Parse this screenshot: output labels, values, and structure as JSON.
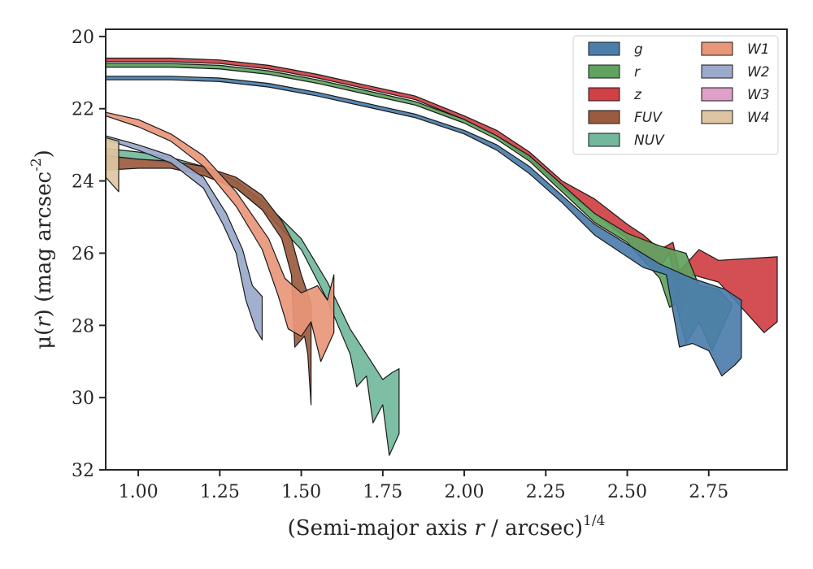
{
  "chart_data": {
    "type": "area",
    "xlabel": "(Semi-major axis r / arcsec)^(1/4)",
    "ylabel": "μ(r) (mag arcsec^-2)",
    "xlim": [
      0.9,
      2.99
    ],
    "ylim": [
      32,
      19.8
    ],
    "y_inverted": true,
    "grid": false,
    "legend_position": "top-right",
    "legend_columns": 2,
    "x_ticks": [
      "1.00",
      "1.25",
      "1.50",
      "1.75",
      "2.00",
      "2.25",
      "2.50",
      "2.75"
    ],
    "x_tick_values": [
      1.0,
      1.25,
      1.5,
      1.75,
      2.0,
      2.25,
      2.5,
      2.75
    ],
    "y_ticks": [
      "20",
      "22",
      "24",
      "26",
      "28",
      "30",
      "32"
    ],
    "y_tick_values": [
      20,
      22,
      24,
      26,
      28,
      30,
      32
    ],
    "series": [
      {
        "name": "g",
        "color": "#4c7eab",
        "upper": [
          [
            0.9,
            21.1
          ],
          [
            1.1,
            21.1
          ],
          [
            1.25,
            21.15
          ],
          [
            1.4,
            21.3
          ],
          [
            1.55,
            21.55
          ],
          [
            1.7,
            21.85
          ],
          [
            1.85,
            22.15
          ],
          [
            2.0,
            22.6
          ],
          [
            2.1,
            23.0
          ],
          [
            2.2,
            23.6
          ],
          [
            2.3,
            24.4
          ],
          [
            2.4,
            25.2
          ],
          [
            2.5,
            25.75
          ],
          [
            2.6,
            26.3
          ],
          [
            2.7,
            26.7
          ],
          [
            2.8,
            27.0
          ],
          [
            2.85,
            27.3
          ]
        ],
        "lower": [
          [
            0.9,
            21.2
          ],
          [
            1.1,
            21.2
          ],
          [
            1.25,
            21.25
          ],
          [
            1.4,
            21.4
          ],
          [
            1.55,
            21.65
          ],
          [
            1.7,
            21.95
          ],
          [
            1.85,
            22.25
          ],
          [
            2.0,
            22.7
          ],
          [
            2.1,
            23.15
          ],
          [
            2.2,
            23.8
          ],
          [
            2.3,
            24.6
          ],
          [
            2.4,
            25.5
          ],
          [
            2.5,
            26.1
          ],
          [
            2.55,
            26.4
          ],
          [
            2.62,
            26.6
          ],
          [
            2.66,
            28.6
          ],
          [
            2.7,
            28.5
          ],
          [
            2.75,
            28.7
          ],
          [
            2.79,
            29.4
          ],
          [
            2.83,
            29.1
          ],
          [
            2.85,
            28.9
          ]
        ]
      },
      {
        "name": "r",
        "color": "#5fa35f",
        "upper": [
          [
            0.9,
            20.75
          ],
          [
            1.1,
            20.75
          ],
          [
            1.25,
            20.8
          ],
          [
            1.4,
            20.95
          ],
          [
            1.55,
            21.2
          ],
          [
            1.7,
            21.5
          ],
          [
            1.85,
            21.8
          ],
          [
            2.0,
            22.3
          ],
          [
            2.1,
            22.75
          ],
          [
            2.2,
            23.3
          ],
          [
            2.3,
            24.1
          ],
          [
            2.4,
            24.9
          ],
          [
            2.5,
            25.45
          ],
          [
            2.6,
            25.8
          ],
          [
            2.68,
            26.0
          ],
          [
            2.72,
            26.9
          ],
          [
            2.78,
            27.0
          ],
          [
            2.82,
            27.4
          ]
        ],
        "lower": [
          [
            0.9,
            20.85
          ],
          [
            1.1,
            20.85
          ],
          [
            1.25,
            20.9
          ],
          [
            1.4,
            21.05
          ],
          [
            1.55,
            21.3
          ],
          [
            1.7,
            21.6
          ],
          [
            1.85,
            21.9
          ],
          [
            2.0,
            22.4
          ],
          [
            2.1,
            22.85
          ],
          [
            2.2,
            23.45
          ],
          [
            2.3,
            24.3
          ],
          [
            2.4,
            25.15
          ],
          [
            2.5,
            25.7
          ],
          [
            2.55,
            26.2
          ],
          [
            2.6,
            26.7
          ],
          [
            2.63,
            27.5
          ],
          [
            2.65,
            27.4
          ],
          [
            2.68,
            28.5
          ],
          [
            2.72,
            27.9
          ],
          [
            2.76,
            28.7
          ],
          [
            2.82,
            27.5
          ]
        ]
      },
      {
        "name": "z",
        "color": "#d04045",
        "upper": [
          [
            0.9,
            20.6
          ],
          [
            1.1,
            20.6
          ],
          [
            1.25,
            20.65
          ],
          [
            1.4,
            20.8
          ],
          [
            1.55,
            21.05
          ],
          [
            1.7,
            21.35
          ],
          [
            1.85,
            21.65
          ],
          [
            2.0,
            22.2
          ],
          [
            2.1,
            22.6
          ],
          [
            2.2,
            23.2
          ],
          [
            2.3,
            24.0
          ],
          [
            2.4,
            24.5
          ],
          [
            2.5,
            25.2
          ],
          [
            2.55,
            25.5
          ],
          [
            2.6,
            25.9
          ],
          [
            2.64,
            25.7
          ],
          [
            2.66,
            26.5
          ],
          [
            2.72,
            25.9
          ],
          [
            2.78,
            26.2
          ],
          [
            2.96,
            26.1
          ]
        ],
        "lower": [
          [
            0.9,
            20.7
          ],
          [
            1.1,
            20.7
          ],
          [
            1.25,
            20.75
          ],
          [
            1.4,
            20.9
          ],
          [
            1.55,
            21.15
          ],
          [
            1.7,
            21.45
          ],
          [
            1.85,
            21.75
          ],
          [
            2.0,
            22.3
          ],
          [
            2.1,
            22.75
          ],
          [
            2.2,
            23.4
          ],
          [
            2.3,
            24.2
          ],
          [
            2.4,
            24.9
          ],
          [
            2.5,
            25.6
          ],
          [
            2.55,
            26.2
          ],
          [
            2.6,
            26.4
          ],
          [
            2.63,
            26.0
          ],
          [
            2.66,
            27.8
          ],
          [
            2.7,
            26.6
          ],
          [
            2.78,
            26.8
          ],
          [
            2.92,
            28.2
          ],
          [
            2.96,
            27.9
          ]
        ]
      },
      {
        "name": "FUV",
        "color": "#9b5b3f",
        "upper": [
          [
            0.9,
            23.3
          ],
          [
            1.0,
            23.4
          ],
          [
            1.1,
            23.45
          ],
          [
            1.2,
            23.6
          ],
          [
            1.3,
            23.9
          ],
          [
            1.38,
            24.4
          ],
          [
            1.44,
            25.1
          ],
          [
            1.47,
            25.6
          ],
          [
            1.5,
            26.6
          ],
          [
            1.53,
            27.4
          ]
        ],
        "lower": [
          [
            0.9,
            23.7
          ],
          [
            1.0,
            23.65
          ],
          [
            1.1,
            23.65
          ],
          [
            1.2,
            23.85
          ],
          [
            1.3,
            24.2
          ],
          [
            1.38,
            24.8
          ],
          [
            1.44,
            25.6
          ],
          [
            1.47,
            26.6
          ],
          [
            1.48,
            28.6
          ],
          [
            1.51,
            28.3
          ],
          [
            1.52,
            28.8
          ],
          [
            1.53,
            30.2
          ]
        ]
      },
      {
        "name": "NUV",
        "color": "#72b89c",
        "upper": [
          [
            0.9,
            23.1
          ],
          [
            1.0,
            23.2
          ],
          [
            1.1,
            23.35
          ],
          [
            1.2,
            23.6
          ],
          [
            1.3,
            24.0
          ],
          [
            1.4,
            24.7
          ],
          [
            1.5,
            25.6
          ],
          [
            1.58,
            26.8
          ],
          [
            1.65,
            28.1
          ],
          [
            1.7,
            28.8
          ],
          [
            1.75,
            29.5
          ],
          [
            1.78,
            29.3
          ],
          [
            1.8,
            29.2
          ]
        ],
        "lower": [
          [
            0.9,
            23.3
          ],
          [
            1.0,
            23.4
          ],
          [
            1.1,
            23.5
          ],
          [
            1.2,
            23.75
          ],
          [
            1.3,
            24.2
          ],
          [
            1.4,
            24.95
          ],
          [
            1.5,
            25.9
          ],
          [
            1.58,
            27.3
          ],
          [
            1.65,
            28.8
          ],
          [
            1.67,
            29.7
          ],
          [
            1.7,
            29.4
          ],
          [
            1.72,
            30.7
          ],
          [
            1.75,
            30.2
          ],
          [
            1.77,
            31.6
          ],
          [
            1.8,
            31.0
          ]
        ]
      },
      {
        "name": "W1",
        "color": "#e8967a",
        "upper": [
          [
            0.9,
            22.1
          ],
          [
            1.0,
            22.3
          ],
          [
            1.1,
            22.7
          ],
          [
            1.2,
            23.3
          ],
          [
            1.3,
            24.3
          ],
          [
            1.4,
            25.6
          ],
          [
            1.45,
            26.7
          ],
          [
            1.5,
            27.1
          ],
          [
            1.55,
            26.9
          ],
          [
            1.58,
            27.3
          ],
          [
            1.6,
            26.6
          ]
        ],
        "lower": [
          [
            0.9,
            22.2
          ],
          [
            1.0,
            22.5
          ],
          [
            1.1,
            22.9
          ],
          [
            1.2,
            23.6
          ],
          [
            1.3,
            24.7
          ],
          [
            1.38,
            25.9
          ],
          [
            1.43,
            27.2
          ],
          [
            1.46,
            28.1
          ],
          [
            1.5,
            28.3
          ],
          [
            1.53,
            27.9
          ],
          [
            1.56,
            29.0
          ],
          [
            1.6,
            28.2
          ]
        ]
      },
      {
        "name": "W2",
        "color": "#9aa9cc",
        "upper": [
          [
            0.9,
            22.75
          ],
          [
            1.0,
            23.0
          ],
          [
            1.1,
            23.3
          ],
          [
            1.2,
            23.9
          ],
          [
            1.27,
            24.9
          ],
          [
            1.32,
            25.9
          ],
          [
            1.35,
            26.9
          ],
          [
            1.38,
            27.2
          ]
        ],
        "lower": [
          [
            0.9,
            22.85
          ],
          [
            1.0,
            23.15
          ],
          [
            1.1,
            23.5
          ],
          [
            1.2,
            24.2
          ],
          [
            1.26,
            25.2
          ],
          [
            1.3,
            26.0
          ],
          [
            1.33,
            27.3
          ],
          [
            1.36,
            28.1
          ],
          [
            1.38,
            28.4
          ]
        ]
      },
      {
        "name": "W3",
        "color": "#dea0c8",
        "upper": [],
        "lower": []
      },
      {
        "name": "W4",
        "color": "#dec5a2",
        "upper": [
          [
            0.9,
            22.8
          ],
          [
            0.94,
            22.9
          ]
        ],
        "lower": [
          [
            0.9,
            23.9
          ],
          [
            0.94,
            24.3
          ]
        ]
      }
    ]
  }
}
